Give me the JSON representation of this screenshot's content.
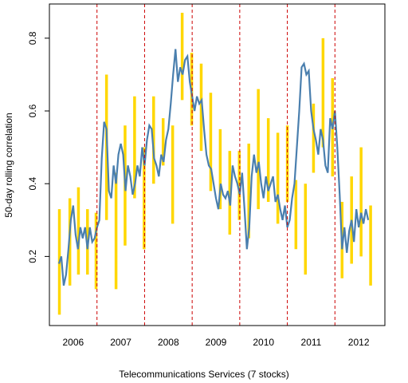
{
  "chart_data": {
    "type": "line",
    "xlabel": "Telecommunications Services (7 stocks)",
    "ylabel": "50-day rolling correlation",
    "xlim": [
      2006.0,
      2013.05
    ],
    "ylim": [
      0.01,
      0.894
    ],
    "xticks": [
      {
        "value": 2006.5,
        "label": "2006"
      },
      {
        "value": 2007.5,
        "label": "2007"
      },
      {
        "value": 2008.5,
        "label": "2008"
      },
      {
        "value": 2009.5,
        "label": "2009"
      },
      {
        "value": 2010.5,
        "label": "2010"
      },
      {
        "value": 2011.5,
        "label": "2011"
      },
      {
        "value": 2012.5,
        "label": "2012"
      }
    ],
    "yticks": [
      0.2,
      0.4,
      0.6,
      0.8
    ],
    "x": [
      2006.2,
      2006.25,
      2006.3,
      2006.35,
      2006.4,
      2006.45,
      2006.5,
      2006.55,
      2006.6,
      2006.65,
      2006.7,
      2006.75,
      2006.8,
      2006.85,
      2006.9,
      2006.95,
      2007.0,
      2007.05,
      2007.1,
      2007.15,
      2007.2,
      2007.25,
      2007.3,
      2007.35,
      2007.4,
      2007.45,
      2007.5,
      2007.55,
      2007.6,
      2007.65,
      2007.7,
      2007.75,
      2007.8,
      2007.85,
      2007.9,
      2007.95,
      2008.0,
      2008.05,
      2008.1,
      2008.15,
      2008.2,
      2008.25,
      2008.3,
      2008.35,
      2008.4,
      2008.45,
      2008.5,
      2008.55,
      2008.6,
      2008.65,
      2008.7,
      2008.75,
      2008.8,
      2008.85,
      2008.9,
      2008.95,
      2009.0,
      2009.05,
      2009.1,
      2009.15,
      2009.2,
      2009.25,
      2009.3,
      2009.35,
      2009.4,
      2009.45,
      2009.5,
      2009.55,
      2009.6,
      2009.65,
      2009.7,
      2009.75,
      2009.8,
      2009.85,
      2009.9,
      2009.95,
      2010.0,
      2010.05,
      2010.1,
      2010.15,
      2010.2,
      2010.25,
      2010.3,
      2010.35,
      2010.4,
      2010.45,
      2010.5,
      2010.55,
      2010.6,
      2010.65,
      2010.7,
      2010.75,
      2010.8,
      2010.85,
      2010.9,
      2010.95,
      2011.0,
      2011.05,
      2011.1,
      2011.15,
      2011.2,
      2011.25,
      2011.3,
      2011.35,
      2011.4,
      2011.45,
      2011.5,
      2011.55,
      2011.6,
      2011.65,
      2011.7,
      2011.75,
      2011.8,
      2011.85,
      2011.9,
      2011.95,
      2012.0,
      2012.05,
      2012.1,
      2012.15,
      2012.2,
      2012.25,
      2012.3,
      2012.35,
      2012.4,
      2012.45,
      2012.5,
      2012.55,
      2012.6,
      2012.65,
      2012.7
    ],
    "series": [
      {
        "color": "#4a7fae",
        "values": [
          0.18,
          0.2,
          0.12,
          0.15,
          0.22,
          0.3,
          0.34,
          0.26,
          0.22,
          0.28,
          0.25,
          0.28,
          0.22,
          0.28,
          0.24,
          0.25,
          0.28,
          0.3,
          0.47,
          0.57,
          0.55,
          0.38,
          0.36,
          0.45,
          0.4,
          0.48,
          0.51,
          0.48,
          0.38,
          0.45,
          0.42,
          0.37,
          0.4,
          0.45,
          0.42,
          0.5,
          0.45,
          0.52,
          0.56,
          0.55,
          0.47,
          0.45,
          0.42,
          0.48,
          0.46,
          0.52,
          0.55,
          0.62,
          0.7,
          0.77,
          0.68,
          0.72,
          0.7,
          0.74,
          0.75,
          0.68,
          0.64,
          0.6,
          0.64,
          0.62,
          0.63,
          0.55,
          0.48,
          0.45,
          0.44,
          0.4,
          0.36,
          0.33,
          0.4,
          0.37,
          0.36,
          0.38,
          0.34,
          0.45,
          0.42,
          0.4,
          0.37,
          0.43,
          0.33,
          0.22,
          0.28,
          0.42,
          0.48,
          0.43,
          0.46,
          0.4,
          0.36,
          0.42,
          0.38,
          0.4,
          0.42,
          0.35,
          0.37,
          0.33,
          0.3,
          0.34,
          0.28,
          0.3,
          0.36,
          0.4,
          0.5,
          0.6,
          0.72,
          0.73,
          0.7,
          0.71,
          0.6,
          0.55,
          0.52,
          0.48,
          0.55,
          0.52,
          0.45,
          0.43,
          0.58,
          0.55,
          0.6,
          0.5,
          0.37,
          0.22,
          0.28,
          0.21,
          0.27,
          0.3,
          0.24,
          0.33,
          0.28,
          0.32,
          0.29,
          0.33,
          0.3
        ]
      }
    ],
    "ranges": {
      "color": "#ffd700",
      "x": [
        2006.21,
        2006.43,
        2006.61,
        2006.8,
        2006.98,
        2007.2,
        2007.4,
        2007.59,
        2007.79,
        2007.99,
        2008.19,
        2008.39,
        2008.59,
        2008.79,
        2008.99,
        2009.19,
        2009.39,
        2009.59,
        2009.79,
        2009.99,
        2010.19,
        2010.39,
        2010.6,
        2010.8,
        2011.0,
        2011.18,
        2011.38,
        2011.55,
        2011.75,
        2011.95,
        2012.15,
        2012.35,
        2012.55,
        2012.75
      ],
      "low": [
        0.04,
        0.12,
        0.15,
        0.15,
        0.11,
        0.3,
        0.11,
        0.23,
        0.36,
        0.22,
        0.4,
        0.45,
        0.29,
        0.63,
        0.56,
        0.49,
        0.38,
        0.33,
        0.26,
        0.3,
        0.25,
        0.33,
        0.35,
        0.29,
        0.35,
        0.22,
        0.15,
        0.43,
        0.5,
        0.42,
        0.14,
        0.18,
        0.2,
        0.12
      ],
      "high": [
        0.33,
        0.36,
        0.39,
        0.33,
        0.32,
        0.7,
        0.43,
        0.56,
        0.64,
        0.5,
        0.64,
        0.58,
        0.56,
        0.87,
        0.76,
        0.73,
        0.65,
        0.55,
        0.49,
        0.49,
        0.51,
        0.66,
        0.58,
        0.54,
        0.56,
        0.41,
        0.4,
        0.62,
        0.8,
        0.69,
        0.35,
        0.42,
        0.5,
        0.34
      ]
    },
    "vlines": {
      "color": "#cc0000",
      "x": [
        2007,
        2008,
        2009,
        2010,
        2011,
        2012
      ]
    }
  }
}
